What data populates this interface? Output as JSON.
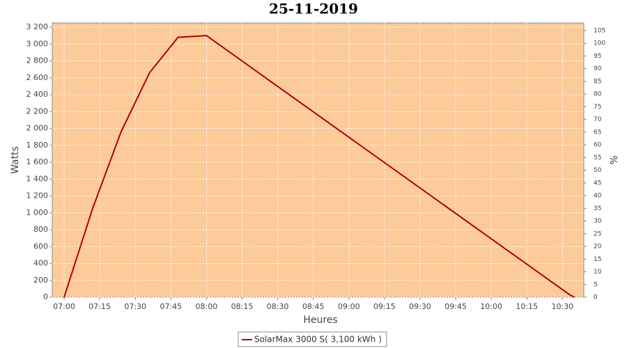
{
  "chart_data": {
    "type": "line",
    "title": "25-11-2019",
    "x_label": "Heures",
    "y_label": "Watts",
    "y2_label": "%",
    "x": [
      "07:00",
      "07:12",
      "07:24",
      "07:36",
      "07:48",
      "08:00",
      "10:33",
      "10:35"
    ],
    "series": [
      {
        "name": "SolarMax 3000 S( 3,100 kWh )",
        "color": "#b00000",
        "values": [
          0,
          1050,
          1960,
          2660,
          3080,
          3100,
          30,
          0
        ]
      }
    ],
    "xlim": [
      "06:55",
      "10:39"
    ],
    "xticks": [
      "07:00",
      "07:15",
      "07:30",
      "07:45",
      "08:00",
      "08:15",
      "08:30",
      "08:45",
      "09:00",
      "09:15",
      "09:30",
      "09:45",
      "10:00",
      "10:15",
      "10:30"
    ],
    "ylim": [
      0,
      3250
    ],
    "yticks": [
      0,
      200,
      400,
      600,
      800,
      {
        "value": 1000,
        "label": "1 000"
      },
      {
        "value": 1200,
        "label": "1 200"
      },
      {
        "value": 1400,
        "label": "1 400"
      },
      {
        "value": 1600,
        "label": "1 600"
      },
      {
        "value": 1800,
        "label": "1 800"
      },
      {
        "value": 2000,
        "label": "2 000"
      },
      {
        "value": 2200,
        "label": "2 200"
      },
      {
        "value": 2400,
        "label": "2 400"
      },
      {
        "value": 2600,
        "label": "2 600"
      },
      {
        "value": 2800,
        "label": "2 800"
      },
      {
        "value": 3000,
        "label": "3 000"
      },
      {
        "value": 3200,
        "label": "3 200"
      }
    ],
    "y2lim": [
      0,
      108
    ],
    "y2ticks": [
      0,
      5,
      10,
      15,
      20,
      25,
      30,
      35,
      40,
      45,
      50,
      55,
      60,
      65,
      70,
      75,
      80,
      85,
      90,
      95,
      100,
      105
    ],
    "grid": true,
    "plot_background": "#fdca99"
  }
}
